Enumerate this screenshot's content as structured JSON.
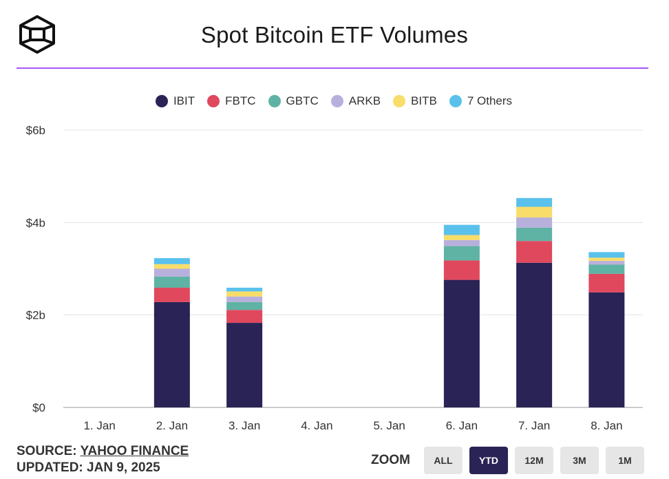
{
  "header": {
    "title": "Spot Bitcoin ETF Volumes"
  },
  "legend": [
    {
      "label": "IBIT",
      "color": "#2a2356"
    },
    {
      "label": "FBTC",
      "color": "#e0485e"
    },
    {
      "label": "GBTC",
      "color": "#5fb3a4"
    },
    {
      "label": "ARKB",
      "color": "#b8b0dc"
    },
    {
      "label": "BITB",
      "color": "#f8dd6a"
    },
    {
      "label": "7 Others",
      "color": "#5ac1ec"
    }
  ],
  "chart_data": {
    "type": "bar",
    "stacked": true,
    "title": "Spot Bitcoin ETF Volumes",
    "xlabel": "",
    "ylabel": "",
    "ylim": [
      0,
      6
    ],
    "yticks": [
      {
        "value": 0,
        "label": "$0"
      },
      {
        "value": 2,
        "label": "$2b"
      },
      {
        "value": 4,
        "label": "$4b"
      },
      {
        "value": 6,
        "label": "$6b"
      }
    ],
    "grid": true,
    "legend_position": "top-center",
    "categories": [
      "1. Jan",
      "2. Jan",
      "3. Jan",
      "4. Jan",
      "5. Jan",
      "6. Jan",
      "7. Jan",
      "8. Jan"
    ],
    "series": [
      {
        "name": "IBIT",
        "values": [
          0,
          2.28,
          1.83,
          0,
          0,
          2.76,
          3.13,
          2.49
        ]
      },
      {
        "name": "FBTC",
        "values": [
          0,
          0.31,
          0.28,
          0,
          0,
          0.42,
          0.47,
          0.4
        ]
      },
      {
        "name": "GBTC",
        "values": [
          0,
          0.24,
          0.17,
          0,
          0,
          0.31,
          0.29,
          0.2
        ]
      },
      {
        "name": "ARKB",
        "values": [
          0,
          0.17,
          0.12,
          0,
          0,
          0.13,
          0.22,
          0.08
        ]
      },
      {
        "name": "BITB",
        "values": [
          0,
          0.1,
          0.11,
          0,
          0,
          0.11,
          0.23,
          0.07
        ]
      },
      {
        "name": "7 Others",
        "values": [
          0,
          0.13,
          0.08,
          0,
          0,
          0.22,
          0.19,
          0.12
        ]
      }
    ]
  },
  "footer": {
    "source_prefix": "SOURCE:",
    "source_name": "YAHOO FINANCE",
    "updated": "UPDATED: JAN 9, 2025"
  },
  "zoom": {
    "label": "ZOOM",
    "options": [
      "ALL",
      "YTD",
      "12M",
      "3M",
      "1M"
    ],
    "active": "YTD"
  }
}
